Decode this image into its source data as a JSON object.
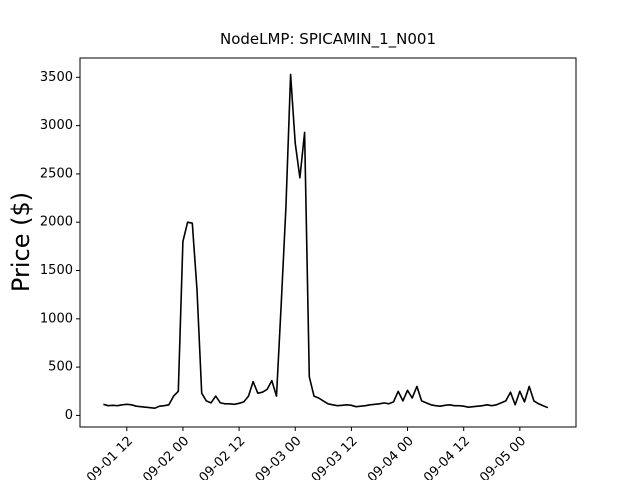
{
  "chart_data": {
    "type": "line",
    "title": "NodeLMP: SPICAMIN_1_N001",
    "y_label": "Price ($)",
    "x": [
      "09-01 07",
      "09-01 08",
      "09-01 09",
      "09-01 10",
      "09-01 11",
      "09-01 12",
      "09-01 13",
      "09-01 14",
      "09-01 15",
      "09-01 16",
      "09-01 17",
      "09-01 18",
      "09-01 19",
      "09-01 20",
      "09-01 21",
      "09-01 22",
      "09-01 23",
      "09-02 00",
      "09-02 01",
      "09-02 02",
      "09-02 03",
      "09-02 04",
      "09-02 05",
      "09-02 06",
      "09-02 07",
      "09-02 08",
      "09-02 09",
      "09-02 10",
      "09-02 11",
      "09-02 12",
      "09-02 13",
      "09-02 14",
      "09-02 15",
      "09-02 16",
      "09-02 17",
      "09-02 18",
      "09-02 19",
      "09-02 20",
      "09-02 21",
      "09-02 22",
      "09-02 23",
      "09-03 00",
      "09-03 01",
      "09-03 02",
      "09-03 03",
      "09-03 04",
      "09-03 05",
      "09-03 06",
      "09-03 07",
      "09-03 08",
      "09-03 09",
      "09-03 10",
      "09-03 11",
      "09-03 12",
      "09-03 13",
      "09-03 14",
      "09-03 15",
      "09-03 16",
      "09-03 17",
      "09-03 18",
      "09-03 19",
      "09-03 20",
      "09-03 21",
      "09-03 22",
      "09-03 23",
      "09-04 00",
      "09-04 01",
      "09-04 02",
      "09-04 03",
      "09-04 04",
      "09-04 05",
      "09-04 06",
      "09-04 07",
      "09-04 08",
      "09-04 09",
      "09-04 10",
      "09-04 11",
      "09-04 12",
      "09-04 13",
      "09-04 14",
      "09-04 15",
      "09-04 16",
      "09-04 17",
      "09-04 18",
      "09-04 19",
      "09-04 20",
      "09-04 21",
      "09-04 22",
      "09-04 23",
      "09-05 00",
      "09-05 01",
      "09-05 02",
      "09-05 03",
      "09-05 04",
      "09-05 05",
      "09-05 06"
    ],
    "series": [
      {
        "name": "SPICAMIN_1_N001",
        "color": "#000000",
        "values": [
          115,
          100,
          105,
          100,
          110,
          115,
          110,
          95,
          90,
          85,
          80,
          75,
          95,
          100,
          110,
          200,
          250,
          1800,
          2000,
          1990,
          1300,
          230,
          150,
          130,
          200,
          130,
          120,
          120,
          115,
          125,
          140,
          200,
          350,
          230,
          240,
          270,
          360,
          200,
          1150,
          2150,
          3530,
          2820,
          2460,
          2930,
          400,
          200,
          180,
          150,
          120,
          110,
          100,
          105,
          110,
          105,
          90,
          95,
          100,
          110,
          115,
          120,
          130,
          120,
          140,
          250,
          150,
          260,
          180,
          300,
          150,
          130,
          110,
          100,
          95,
          105,
          110,
          100,
          100,
          95,
          85,
          90,
          95,
          100,
          110,
          100,
          110,
          130,
          150,
          240,
          110,
          250,
          140,
          300,
          150,
          120,
          100,
          80
        ]
      }
    ],
    "xlim": [
      "09-01 02",
      "09-05 12"
    ],
    "xticks": [
      "09-01 12",
      "09-02 00",
      "09-02 12",
      "09-03 00",
      "09-03 12",
      "09-04 00",
      "09-04 12",
      "09-05 00"
    ],
    "ylim": [
      -120,
      3700
    ],
    "yticks": [
      0,
      500,
      1000,
      1500,
      2000,
      2500,
      3000,
      3500
    ],
    "grid": false
  }
}
